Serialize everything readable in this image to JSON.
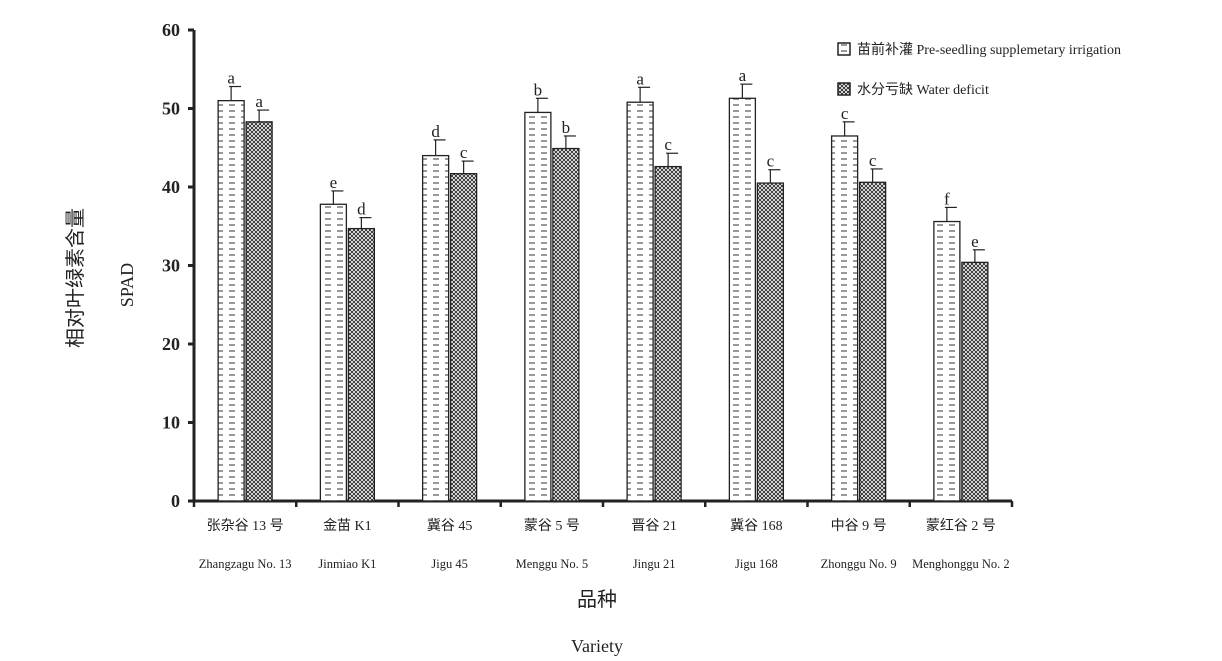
{
  "colors": {
    "axis": "#222222",
    "bar_fill": "#ffffff",
    "bar_stroke": "#222222",
    "series1_pattern": "#555555",
    "series2_pattern": "#222222"
  },
  "chart_data": {
    "type": "bar",
    "ylim": [
      0,
      60
    ],
    "yticks": [
      0,
      10,
      20,
      30,
      40,
      50,
      60
    ],
    "ylabel_cn": "相对叶绿素含量",
    "ylabel_en": "SPAD",
    "xlabel_cn": "品种",
    "xlabel_en": "Variety",
    "legend_position": "top-right",
    "grid": false,
    "categories_cn": [
      "张杂谷 13 号",
      "金苗 K1",
      "冀谷 45",
      "蒙谷 5 号",
      "晋谷 21",
      "冀谷 168",
      "中谷 9 号",
      "蒙红谷 2 号"
    ],
    "categories_en": [
      "Zhangzagu No. 13",
      "Jinmiao K1",
      "Jigu 45",
      "Menggu No. 5",
      "Jingu 21",
      "Jigu 168",
      "Zhonggu No. 9",
      "Menghonggu No. 2"
    ],
    "series": [
      {
        "name": "苗前补灌 Pre-seedling supplemetary irrigation",
        "pattern": "dashes",
        "values": [
          51.0,
          37.8,
          44.0,
          49.5,
          50.8,
          51.3,
          46.5,
          35.6
        ],
        "errors": [
          1.8,
          1.7,
          2.0,
          1.8,
          1.9,
          1.8,
          1.8,
          1.8
        ],
        "letters": [
          "a",
          "e",
          "d",
          "b",
          "a",
          "a",
          "c",
          "f"
        ]
      },
      {
        "name": "水分亏缺 Water deficit",
        "pattern": "crosshatch",
        "values": [
          48.3,
          34.7,
          41.7,
          44.9,
          42.6,
          40.5,
          40.6,
          30.4
        ],
        "errors": [
          1.5,
          1.4,
          1.6,
          1.6,
          1.7,
          1.7,
          1.7,
          1.6
        ],
        "letters": [
          "a",
          "d",
          "c",
          "b",
          "c",
          "c",
          "c",
          "e"
        ]
      }
    ]
  }
}
